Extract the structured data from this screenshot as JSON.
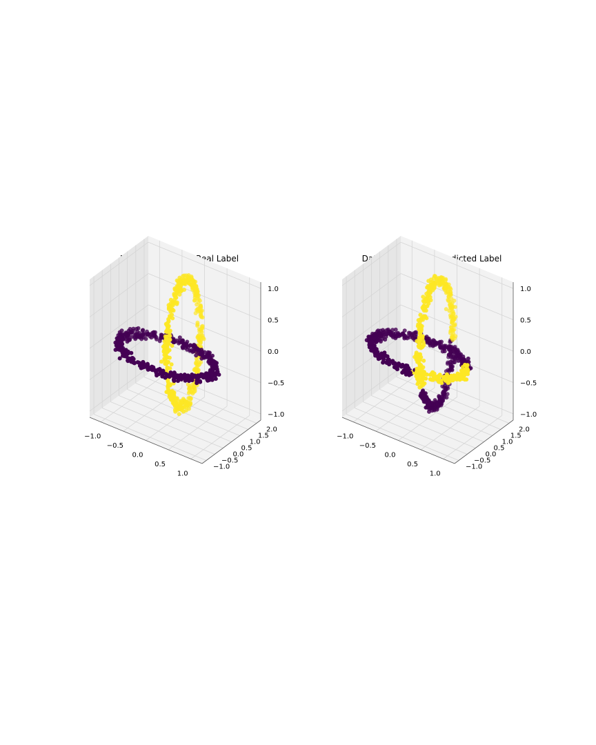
{
  "colors": {
    "label_0": "#440154",
    "label_1": "#fde725",
    "pane": "#f2f2f2",
    "pane_side": "#e6e6e6",
    "grid": "#d5d5d5"
  },
  "chart_data": [
    {
      "type": "scatter3d",
      "title": "Dataset Chainlink Real Label",
      "xlim": [
        -1.25,
        1.25
      ],
      "ylim": [
        -1.25,
        2.25
      ],
      "zlim": [
        -1.1,
        1.1
      ],
      "x_ticks": [
        "−1.0",
        "−0.5",
        "0.0",
        "0.5",
        "1.0"
      ],
      "y_ticks": [
        "−1.0",
        "−0.5",
        "0.0",
        "0.5",
        "1.0",
        "1.5",
        "2.0"
      ],
      "z_ticks": [
        "−1.0",
        "−0.5",
        "0.0",
        "0.5",
        "1.0"
      ],
      "grid": true,
      "series": [
        {
          "label": 0,
          "shape": "ring in the x-y plane centered at (0, 0, 0), radius 1"
        },
        {
          "label": 1,
          "shape": "ring in the y-z plane centered at (0, 1, 0), radius 1"
        }
      ],
      "points_per_ring": 500
    },
    {
      "type": "scatter3d",
      "title": "Dataset Chainlink Predicted Label",
      "xlim": [
        -1.25,
        1.25
      ],
      "ylim": [
        -1.25,
        2.25
      ],
      "zlim": [
        -1.1,
        1.1
      ],
      "x_ticks": [
        "−1.0",
        "−0.5",
        "0.0",
        "0.5",
        "1.0"
      ],
      "y_ticks": [
        "−1.0",
        "−0.5",
        "0.0",
        "0.5",
        "1.0",
        "1.5",
        "2.0"
      ],
      "z_ticks": [
        "−1.0",
        "−0.5",
        "0.0",
        "0.5",
        "1.0"
      ],
      "grid": true,
      "series": [
        {
          "label": 0,
          "shape": "mixed: most of x-y ring plus lower part of y-z ring"
        },
        {
          "label": 1,
          "shape": "mixed: upper part of y-z ring plus front-right arc of x-y ring"
        }
      ],
      "points_per_ring": 500
    }
  ]
}
